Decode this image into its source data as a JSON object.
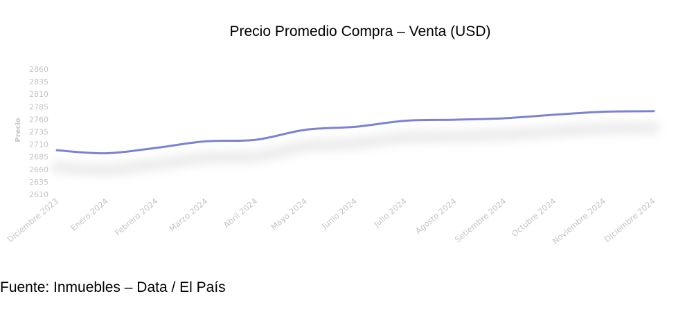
{
  "chart_data": {
    "type": "line",
    "title": "Precio Promedio Compra – Venta (USD)",
    "source": "Fuente: Inmuebles – Data / El País",
    "xlabel": "",
    "ylabel": "Precio",
    "categories": [
      "Diciembre 2023",
      "Enero 2024",
      "Febrero 2024",
      "Marzo 2024",
      "Abril 2024",
      "Mayo 2024",
      "Junio 2024",
      "Julio 2024",
      "Agosto 2024",
      "Setiembre 2024",
      "Octubre 2024",
      "Noviembre 2024",
      "Diciembre 2024"
    ],
    "y_ticks": [
      2610,
      2635,
      2660,
      2685,
      2710,
      2735,
      2760,
      2785,
      2810,
      2835,
      2860
    ],
    "ylim": [
      2610,
      2860
    ],
    "series": [
      {
        "values": [
          2698,
          2692,
          2703,
          2716,
          2719,
          2739,
          2745,
          2757,
          2759,
          2762,
          2769,
          2775,
          2776
        ]
      }
    ],
    "colors": {
      "line": "#7b82d2",
      "tick_text": "#c4c4c4"
    },
    "grid": false,
    "legend": "none"
  }
}
